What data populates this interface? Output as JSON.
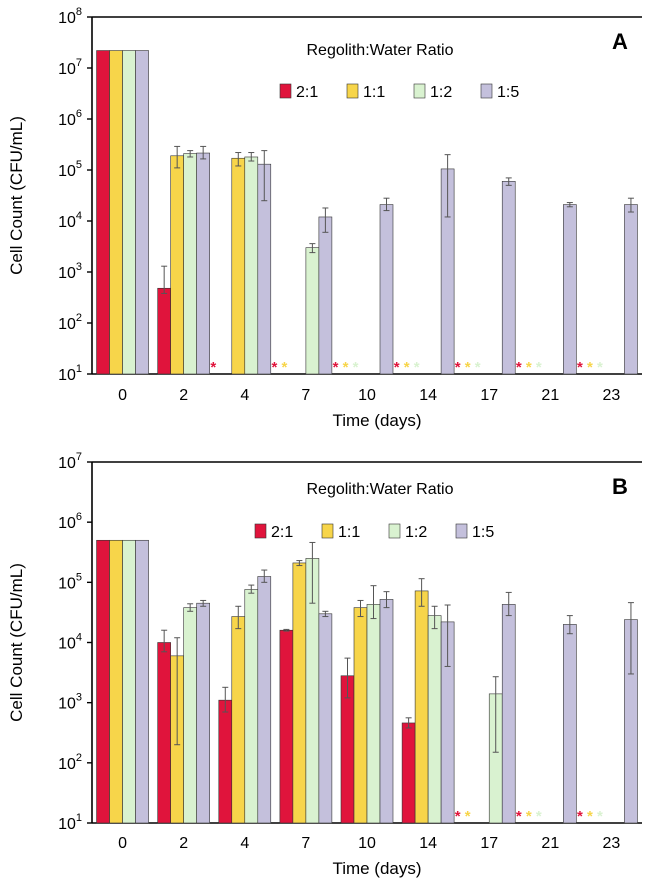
{
  "colors": {
    "2:1": "#e0143c",
    "1:1": "#f7d54a",
    "1:2": "#d9f2d0",
    "1:5": "#c4c0dc",
    "axis": "#000000",
    "errorbar": "#555555"
  },
  "chart_data": [
    {
      "type": "bar",
      "panel_label": "A",
      "legend_title": "Regolith:Water Ratio",
      "legend_placement": "top-center",
      "xlabel": "Time (days)",
      "ylabel": "Cell Count (CFU/mL)",
      "yscale": "log",
      "ylim": [
        10,
        100000000
      ],
      "ytick_labels": [
        {
          "base": "10",
          "exp": "1",
          "value": 10
        },
        {
          "base": "10",
          "exp": "2",
          "value": 100
        },
        {
          "base": "10",
          "exp": "3",
          "value": 1000
        },
        {
          "base": "10",
          "exp": "4",
          "value": 10000
        },
        {
          "base": "10",
          "exp": "5",
          "value": 100000
        },
        {
          "base": "10",
          "exp": "6",
          "value": 1000000
        },
        {
          "base": "10",
          "exp": "7",
          "value": 10000000
        },
        {
          "base": "10",
          "exp": "8",
          "value": 100000000
        }
      ],
      "grid": false,
      "categories": [
        "0",
        "2",
        "4",
        "7",
        "10",
        "14",
        "17",
        "21",
        "23"
      ],
      "below_detection_marker": "*",
      "series": [
        {
          "name": "2:1",
          "color_key": "2:1",
          "values": [
            22000000,
            480,
            null,
            null,
            null,
            null,
            null,
            null,
            null
          ],
          "err_low": [
            null,
            380,
            null,
            null,
            null,
            null,
            null,
            null,
            null
          ],
          "err_high": [
            null,
            1300,
            null,
            null,
            null,
            null,
            null,
            null,
            null
          ],
          "marker": [
            false,
            false,
            true,
            true,
            true,
            true,
            true,
            true,
            true
          ]
        },
        {
          "name": "1:1",
          "color_key": "1:1",
          "values": [
            22000000,
            190000,
            170000,
            null,
            null,
            null,
            null,
            null,
            null
          ],
          "err_low": [
            null,
            110000,
            120000,
            null,
            null,
            null,
            null,
            null,
            null
          ],
          "err_high": [
            null,
            290000,
            220000,
            null,
            null,
            null,
            null,
            null,
            null
          ],
          "marker": [
            false,
            false,
            false,
            true,
            true,
            true,
            true,
            true,
            true
          ]
        },
        {
          "name": "1:2",
          "color_key": "1:2",
          "values": [
            22000000,
            210000,
            180000,
            3000,
            null,
            null,
            null,
            null,
            null
          ],
          "err_low": [
            null,
            180000,
            150000,
            2400,
            null,
            null,
            null,
            null,
            null
          ],
          "err_high": [
            null,
            240000,
            220000,
            3600,
            null,
            null,
            null,
            null,
            null
          ],
          "marker": [
            false,
            false,
            false,
            false,
            true,
            true,
            true,
            true,
            true
          ]
        },
        {
          "name": "1:5",
          "color_key": "1:5",
          "values": [
            22000000,
            215000,
            130000,
            12000,
            21000,
            105000,
            60000,
            21000,
            21000
          ],
          "err_low": [
            null,
            165000,
            25000,
            6000,
            16000,
            12000,
            50000,
            19000,
            15000
          ],
          "err_high": [
            null,
            290000,
            240000,
            18000,
            28000,
            200000,
            70000,
            23000,
            28000
          ],
          "marker": [
            false,
            false,
            false,
            false,
            false,
            false,
            false,
            false,
            false
          ]
        }
      ]
    },
    {
      "type": "bar",
      "panel_label": "B",
      "legend_title": "Regolith:Water Ratio",
      "legend_placement": "top-center",
      "xlabel": "Time (days)",
      "ylabel": "Cell Count (CFU/mL)",
      "yscale": "log",
      "ylim": [
        10,
        10000000
      ],
      "ytick_labels": [
        {
          "base": "10",
          "exp": "1",
          "value": 10
        },
        {
          "base": "10",
          "exp": "2",
          "value": 100
        },
        {
          "base": "10",
          "exp": "3",
          "value": 1000
        },
        {
          "base": "10",
          "exp": "4",
          "value": 10000
        },
        {
          "base": "10",
          "exp": "5",
          "value": 100000
        },
        {
          "base": "10",
          "exp": "6",
          "value": 1000000
        },
        {
          "base": "10",
          "exp": "7",
          "value": 10000000
        }
      ],
      "grid": false,
      "categories": [
        "0",
        "2",
        "4",
        "7",
        "10",
        "14",
        "17",
        "21",
        "23"
      ],
      "below_detection_marker": "*",
      "series": [
        {
          "name": "2:1",
          "color_key": "2:1",
          "values": [
            500000,
            10000,
            1100,
            16000,
            2800,
            460,
            null,
            null,
            null
          ],
          "err_low": [
            null,
            7000,
            700,
            15500,
            1200,
            380,
            null,
            null,
            null
          ],
          "err_high": [
            null,
            16000,
            1800,
            16500,
            5500,
            560,
            null,
            null,
            null
          ],
          "marker": [
            false,
            false,
            false,
            false,
            false,
            false,
            true,
            true,
            true
          ]
        },
        {
          "name": "1:1",
          "color_key": "1:1",
          "values": [
            500000,
            6000,
            27000,
            210000,
            38000,
            72000,
            null,
            null,
            null
          ],
          "err_low": [
            null,
            200,
            17000,
            190000,
            27000,
            40000,
            null,
            null,
            null
          ],
          "err_high": [
            null,
            12000,
            40000,
            230000,
            50000,
            115000,
            null,
            null,
            null
          ],
          "marker": [
            false,
            false,
            false,
            false,
            false,
            false,
            true,
            true,
            true
          ]
        },
        {
          "name": "1:2",
          "color_key": "1:2",
          "values": [
            500000,
            38000,
            76000,
            250000,
            43000,
            28000,
            1400,
            null,
            null
          ],
          "err_low": [
            null,
            33000,
            66000,
            45000,
            25000,
            17000,
            150,
            null,
            null
          ],
          "err_high": [
            null,
            44000,
            90000,
            460000,
            88000,
            40000,
            2700,
            null,
            null
          ],
          "marker": [
            false,
            false,
            false,
            false,
            false,
            false,
            false,
            true,
            true
          ]
        },
        {
          "name": "1:5",
          "color_key": "1:5",
          "values": [
            500000,
            45000,
            125000,
            30000,
            52000,
            22000,
            43000,
            20000,
            24000
          ],
          "err_low": [
            null,
            40000,
            100000,
            27000,
            38000,
            4000,
            28000,
            14000,
            3000
          ],
          "err_high": [
            null,
            50000,
            160000,
            33000,
            70000,
            42000,
            68000,
            28000,
            46000
          ],
          "marker": [
            false,
            false,
            false,
            false,
            false,
            false,
            false,
            false,
            false
          ]
        }
      ]
    }
  ]
}
